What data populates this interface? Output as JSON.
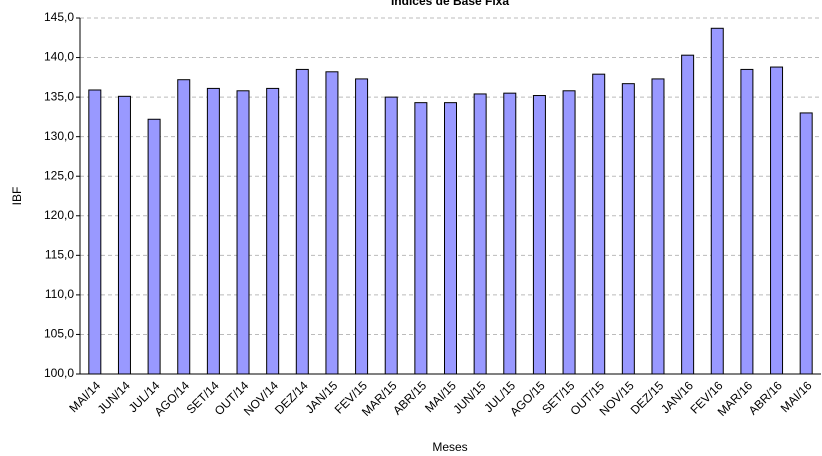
{
  "chart_data": {
    "type": "bar",
    "title": "Índices de Base Fixa",
    "x_label": "Meses",
    "y_label": "IBF",
    "categories": [
      "MAI/14",
      "JUN/14",
      "JUL/14",
      "AGO/14",
      "SET/14",
      "OUT/14",
      "NOV/14",
      "DEZ/14",
      "JAN/15",
      "FEV/15",
      "MAR/15",
      "ABR/15",
      "MAI/15",
      "JUN/15",
      "JUL/15",
      "AGO/15",
      "SET/15",
      "OUT/15",
      "NOV/15",
      "DEZ/15",
      "JAN/16",
      "FEV/16",
      "MAR/16",
      "ABR/16",
      "MAI/16"
    ],
    "values": [
      135.9,
      135.1,
      132.2,
      137.2,
      136.1,
      135.8,
      136.1,
      138.5,
      138.2,
      137.3,
      135.0,
      134.3,
      134.3,
      135.4,
      135.5,
      135.2,
      135.8,
      137.9,
      136.7,
      137.3,
      140.3,
      143.7,
      138.5,
      138.8,
      133.0
    ],
    "color": "#9999ff",
    "ylim": [
      100,
      145
    ],
    "yticks": [
      {
        "value": 100,
        "label": "100,0"
      },
      {
        "value": 105,
        "label": "105,0"
      },
      {
        "value": 110,
        "label": "110,0"
      },
      {
        "value": 115,
        "label": "115,0"
      },
      {
        "value": 120,
        "label": "120,0"
      },
      {
        "value": 125,
        "label": "125,0"
      },
      {
        "value": 130,
        "label": "130,0"
      },
      {
        "value": 135,
        "label": "135,0"
      },
      {
        "value": 140,
        "label": "140,0"
      },
      {
        "value": 145,
        "label": "145,0"
      }
    ],
    "grid": true
  }
}
